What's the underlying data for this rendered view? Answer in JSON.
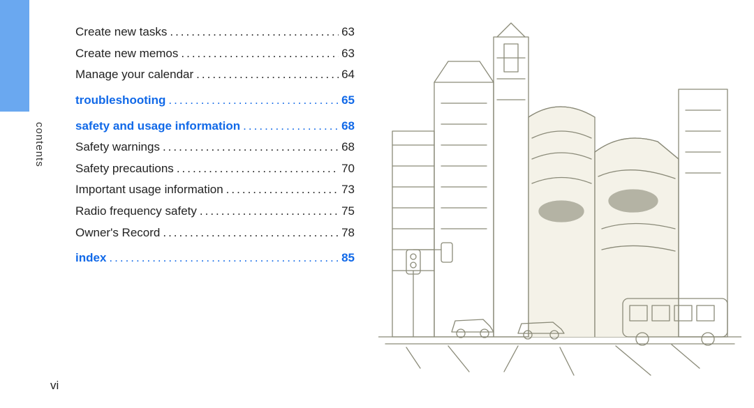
{
  "colors": {
    "tab": "#6aa8f0",
    "link": "#1169e8",
    "text": "#222222",
    "illustration_stroke": "#8a8a78",
    "illustration_fill": "#f4f2e8",
    "background": "#ffffff"
  },
  "sidebar": {
    "label": "contents"
  },
  "page_number": "vi",
  "toc": {
    "entries": [
      {
        "type": "sub",
        "label": "Create new tasks",
        "page": "63"
      },
      {
        "type": "sub",
        "label": "Create new memos",
        "page": "63"
      },
      {
        "type": "sub",
        "label": "Manage your calendar",
        "page": "64"
      },
      {
        "type": "section",
        "label": "troubleshooting",
        "page": "65"
      },
      {
        "type": "section",
        "label": "safety and usage information",
        "page": "68"
      },
      {
        "type": "sub",
        "label": "Safety warnings",
        "page": "68"
      },
      {
        "type": "sub",
        "label": "Safety precautions",
        "page": "70"
      },
      {
        "type": "sub",
        "label": "Important usage information",
        "page": "73"
      },
      {
        "type": "sub",
        "label": "Radio frequency safety",
        "page": "75"
      },
      {
        "type": "sub",
        "label": "Owner's Record",
        "page": "78"
      },
      {
        "type": "section",
        "label": "index",
        "page": "85"
      }
    ]
  },
  "illustration": {
    "description": "line-drawing cityscape with buildings, a bus, cars, and a traffic light",
    "stroke_width": 1.3
  }
}
